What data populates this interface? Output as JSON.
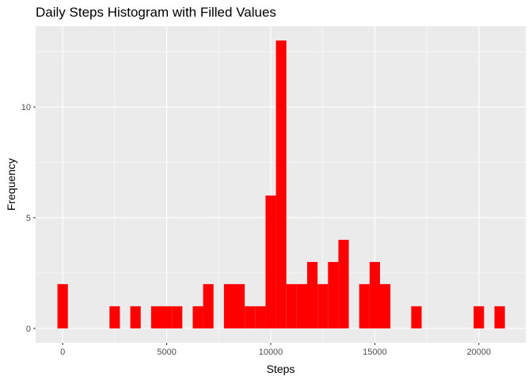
{
  "chart_data": {
    "type": "bar",
    "title": "Daily Steps Histogram with Filled Values",
    "xlabel": "Steps",
    "ylabel": "Frequency",
    "x_ticks": [
      0,
      5000,
      10000,
      15000,
      20000
    ],
    "y_ticks": [
      0,
      5,
      10
    ],
    "xlim": [
      -1300,
      22250
    ],
    "ylim": [
      -0.65,
      13.65
    ],
    "bin_width": 500,
    "bar_color": "#ff0000",
    "panel_color": "#ebebeb",
    "grid": true,
    "bins": [
      {
        "x": 0,
        "count": 2
      },
      {
        "x": 2500,
        "count": 1
      },
      {
        "x": 3500,
        "count": 1
      },
      {
        "x": 4500,
        "count": 1
      },
      {
        "x": 5000,
        "count": 1
      },
      {
        "x": 5500,
        "count": 1
      },
      {
        "x": 6500,
        "count": 1
      },
      {
        "x": 7000,
        "count": 2
      },
      {
        "x": 8000,
        "count": 2
      },
      {
        "x": 8500,
        "count": 2
      },
      {
        "x": 9000,
        "count": 1
      },
      {
        "x": 9500,
        "count": 1
      },
      {
        "x": 10000,
        "count": 6
      },
      {
        "x": 10500,
        "count": 13
      },
      {
        "x": 11000,
        "count": 2
      },
      {
        "x": 11500,
        "count": 2
      },
      {
        "x": 12000,
        "count": 3
      },
      {
        "x": 12500,
        "count": 2
      },
      {
        "x": 13000,
        "count": 3
      },
      {
        "x": 13500,
        "count": 4
      },
      {
        "x": 14500,
        "count": 2
      },
      {
        "x": 15000,
        "count": 3
      },
      {
        "x": 15500,
        "count": 2
      },
      {
        "x": 17000,
        "count": 1
      },
      {
        "x": 20000,
        "count": 1
      },
      {
        "x": 21000,
        "count": 1
      }
    ]
  }
}
